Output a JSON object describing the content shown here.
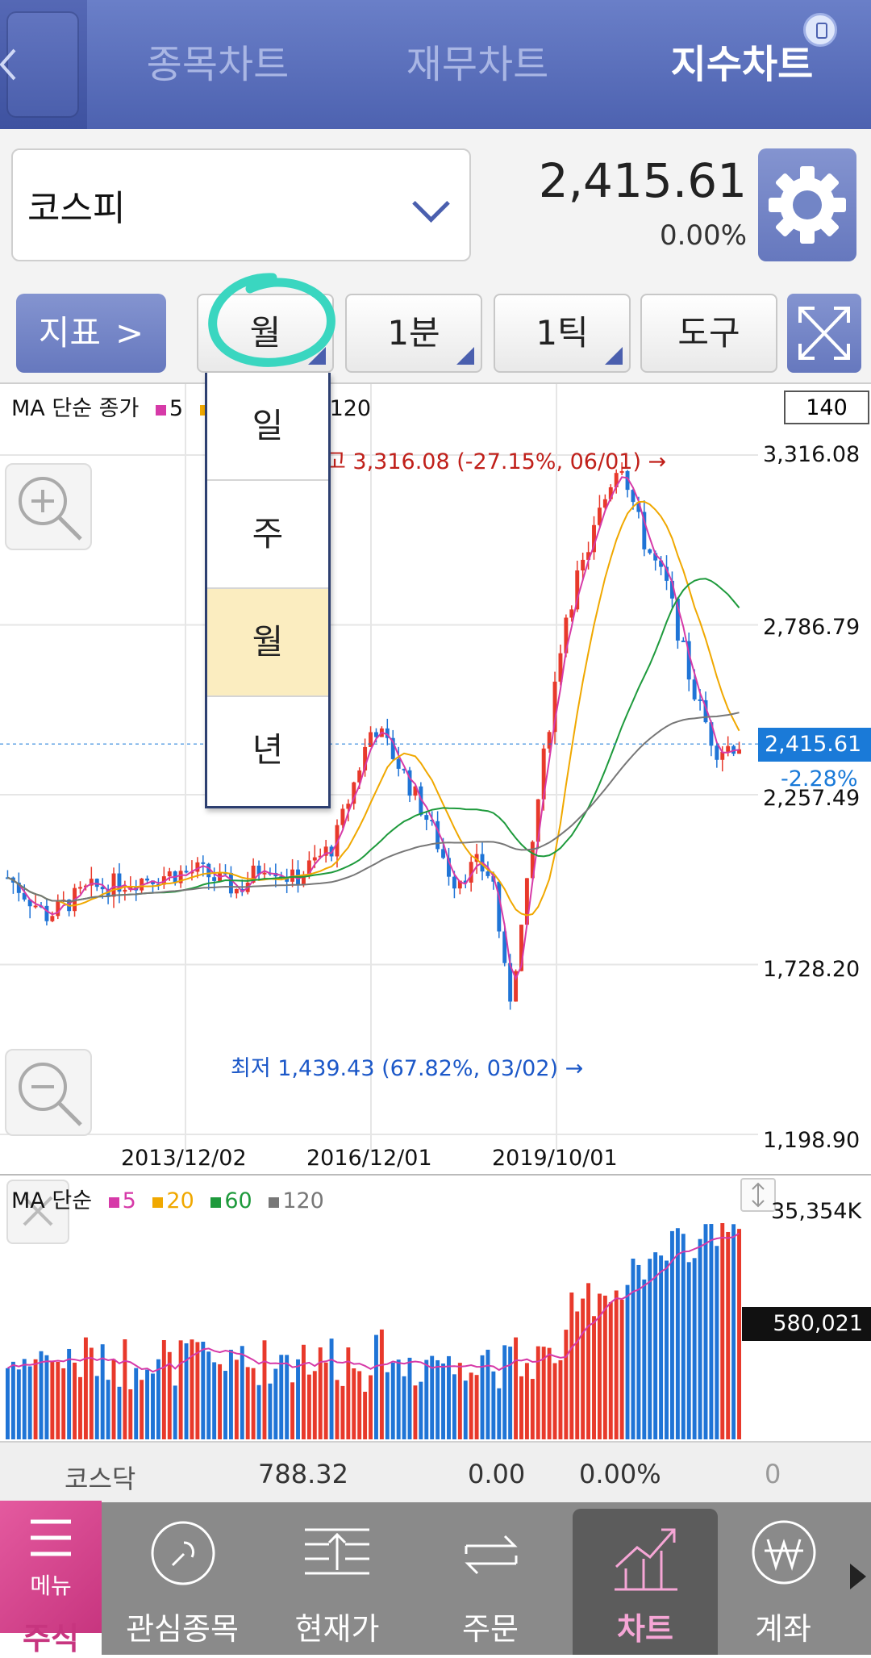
{
  "header": {
    "tabs": [
      "종목차트",
      "재무차트",
      "지수차트"
    ],
    "active_tab": "지수차트"
  },
  "index": {
    "name": "코스피",
    "price": "2,415.61",
    "change_pct": "0.00%"
  },
  "toolbar": {
    "indicator_label": "지표",
    "period_label": "월",
    "minute_label": "1분",
    "tick_label": "1틱",
    "tools_label": "도구"
  },
  "period_menu": {
    "items": [
      "일",
      "주",
      "월",
      "년"
    ],
    "selected": "월"
  },
  "chart": {
    "legend_title": "MA 단순 종가",
    "legend_items": [
      {
        "label": "5",
        "color": "#d63aa8"
      },
      {
        "label": "20",
        "color": "#f0a800"
      },
      {
        "label": "60",
        "color": "#1e9a3c"
      },
      {
        "label": "120",
        "color": "#777777"
      }
    ],
    "count_box": "140",
    "y_labels": [
      "3,316.08",
      "2,786.79",
      "2,257.49",
      "1,728.20",
      "1,198.90"
    ],
    "x_labels": [
      "2013/12/02",
      "2016/12/01",
      "2019/10/01"
    ],
    "high_annotation": "고 3,316.08 (-27.15%, 06/01) →",
    "low_annotation": "최저 1,439.43 (67.82%, 03/02) →",
    "current_value": "2,415.61",
    "current_change": "-2.28%",
    "colors": {
      "up": "#e8392b",
      "down": "#1f74d6",
      "high": "#c0201a",
      "low": "#1c58c8"
    }
  },
  "chart_data": {
    "type": "candlestick",
    "y_range": [
      1198.9,
      3316.08
    ],
    "x_labels": [
      "2013/12/02",
      "2016/12/01",
      "2019/10/01"
    ],
    "high": {
      "value": 3316.08,
      "change": "-27.15%",
      "date": "06/01"
    },
    "low": {
      "value": 1439.43,
      "change": "67.82%",
      "date": "03/02"
    },
    "close": 2415.61,
    "ma_periods": [
      5,
      20,
      60,
      120
    ],
    "volume_max": "35,354K",
    "volume_last": "580,021"
  },
  "volume": {
    "legend_title": "MA 단순",
    "max_label": "35,354K",
    "current_label": "580,021"
  },
  "kosdaq": {
    "name": "코스닥",
    "value": "788.32",
    "change": "0.00",
    "pct": "0.00%",
    "volume": "0"
  },
  "nav": {
    "menu_label": "메뉴",
    "stock_label": "주식",
    "items": [
      "관심종목",
      "현재가",
      "주문",
      "차트",
      "계좌"
    ]
  }
}
